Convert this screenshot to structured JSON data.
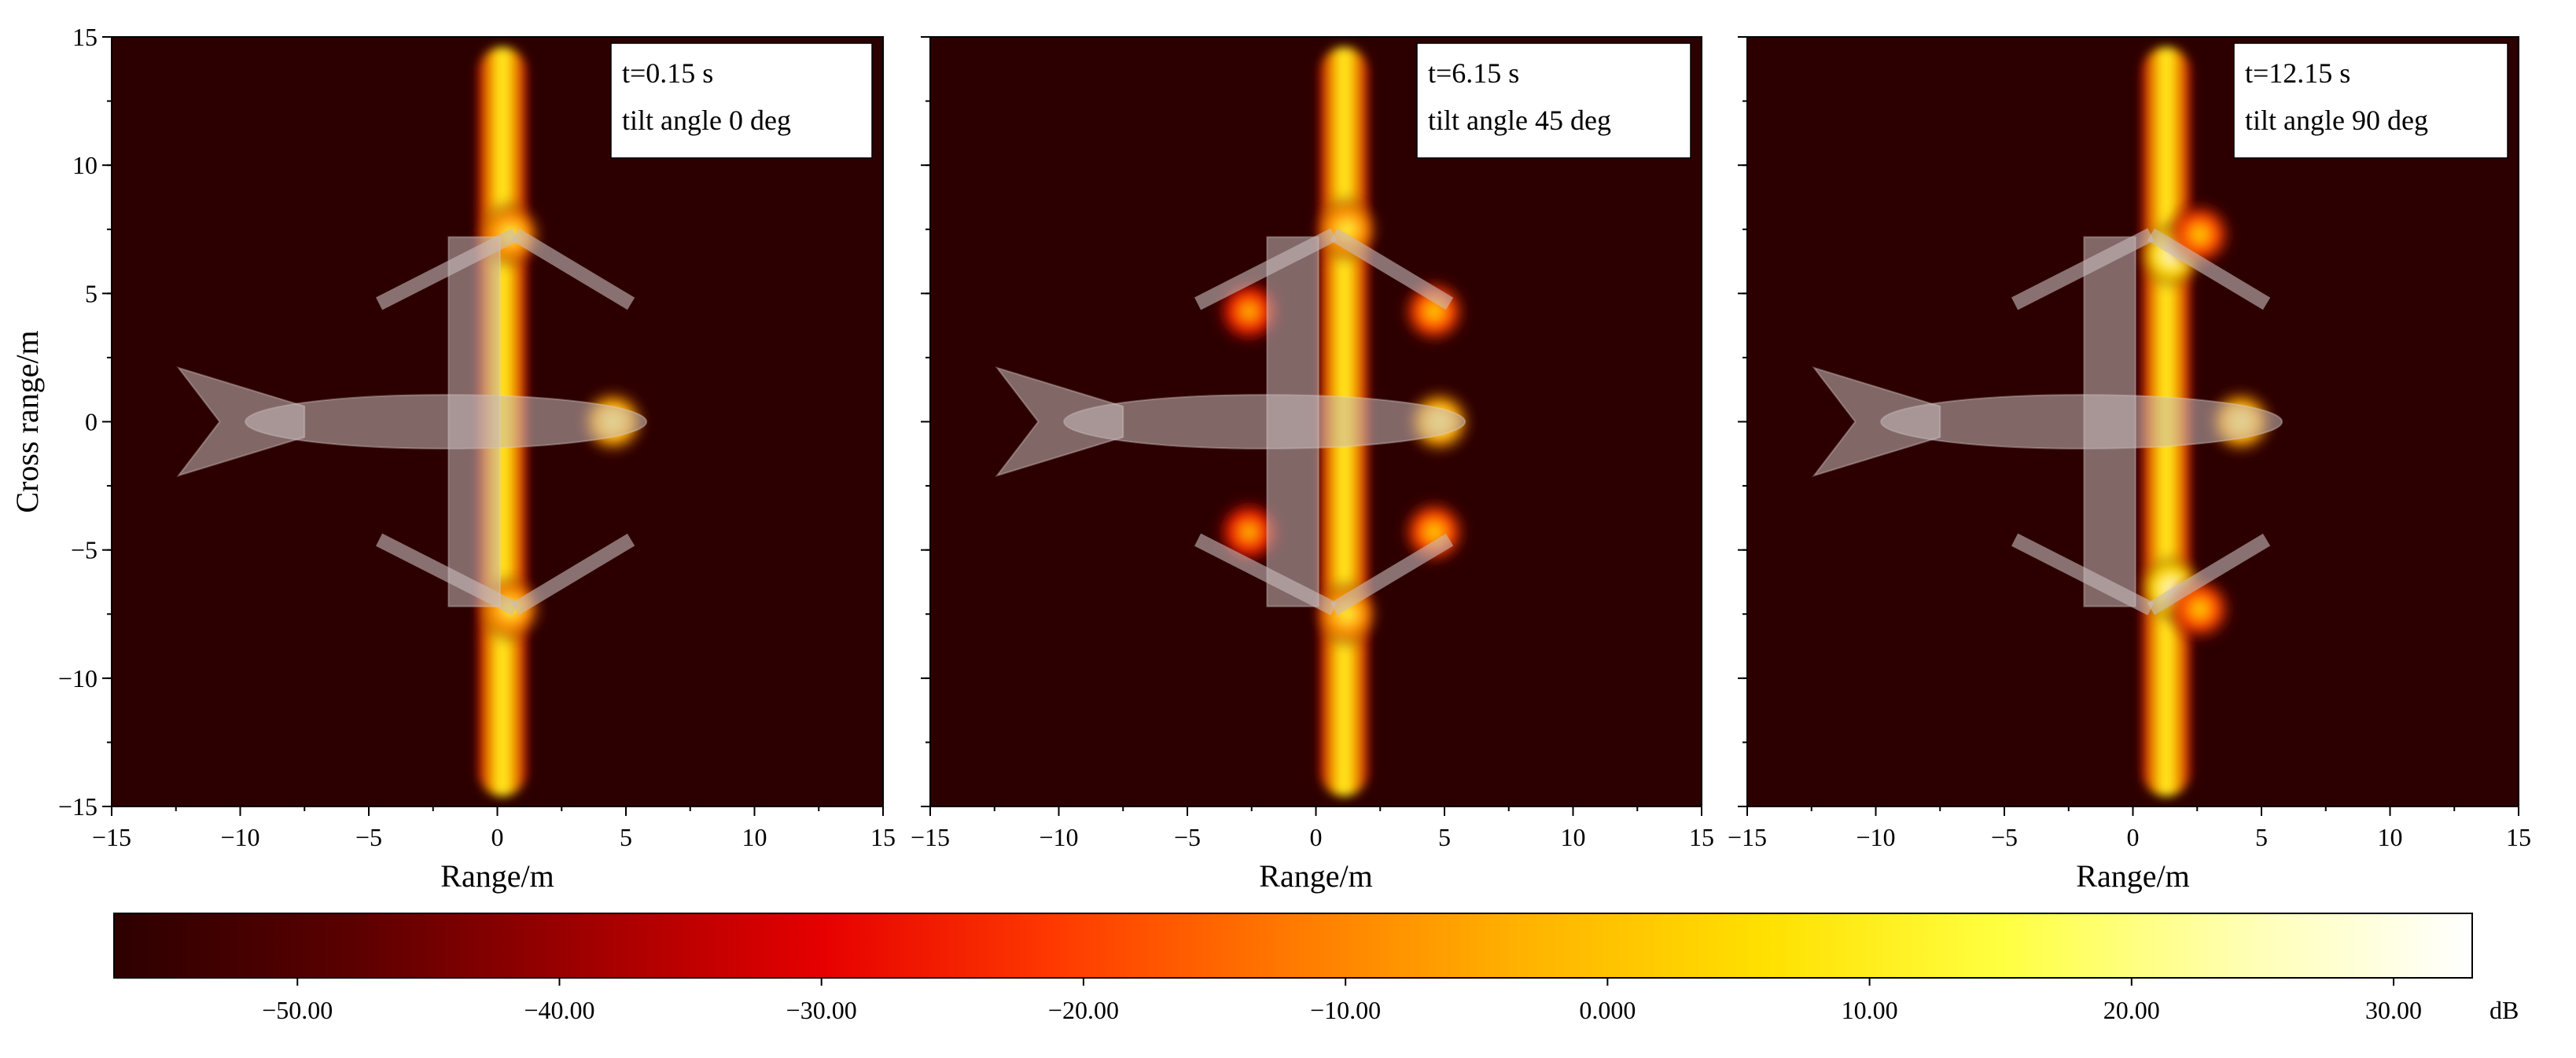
{
  "chart_data": [
    {
      "type": "heatmap",
      "xlabel": "Range/m",
      "ylabel": "Cross range/m",
      "xlim": [
        -15,
        15
      ],
      "ylim": [
        -15,
        15
      ],
      "xticks": [
        -15,
        -10,
        -5,
        0,
        5,
        10,
        15
      ],
      "yticks": [
        -15,
        -10,
        -5,
        0,
        5,
        10,
        15
      ],
      "annotation": [
        "t=0.15 s",
        "tilt angle 0 deg"
      ],
      "rotor_x": 0.2,
      "hotspots": [
        {
          "x": 4.5,
          "y": 0,
          "level": 20
        },
        {
          "x": 0.5,
          "y": 7.3,
          "level": 15
        },
        {
          "x": 0.5,
          "y": -7.3,
          "level": 15
        }
      ]
    },
    {
      "type": "heatmap",
      "xlabel": "Range/m",
      "ylabel": "",
      "xlim": [
        -15,
        15
      ],
      "ylim": [
        -15,
        15
      ],
      "xticks": [
        -15,
        -10,
        -5,
        0,
        5,
        10,
        15
      ],
      "yticks": [
        -15,
        -10,
        -5,
        0,
        5,
        10,
        15
      ],
      "annotation": [
        "t=6.15 s",
        "tilt angle 45 deg"
      ],
      "rotor_x": 1.1,
      "hotspots": [
        {
          "x": 4.8,
          "y": 0,
          "level": 20
        },
        {
          "x": 4.6,
          "y": 4.3,
          "level": 5
        },
        {
          "x": 4.6,
          "y": -4.3,
          "level": 5
        },
        {
          "x": -2.6,
          "y": 4.3,
          "level": 0
        },
        {
          "x": -2.6,
          "y": -4.3,
          "level": 0
        },
        {
          "x": 1.2,
          "y": 7.5,
          "level": 15
        },
        {
          "x": 1.2,
          "y": -7.5,
          "level": 15
        }
      ]
    },
    {
      "type": "heatmap",
      "xlabel": "Range/m",
      "ylabel": "",
      "xlim": [
        -15,
        15
      ],
      "ylim": [
        -15,
        15
      ],
      "xticks": [
        -15,
        -10,
        -5,
        0,
        5,
        10,
        15
      ],
      "yticks": [
        -15,
        -10,
        -5,
        0,
        5,
        10,
        15
      ],
      "annotation": [
        "t=12.15 s",
        "tilt angle 90 deg"
      ],
      "rotor_x": 1.3,
      "hotspots": [
        {
          "x": 4.2,
          "y": 0,
          "level": 20
        },
        {
          "x": 1.5,
          "y": 6.5,
          "level": 30
        },
        {
          "x": 1.5,
          "y": -6.5,
          "level": 30
        },
        {
          "x": 2.6,
          "y": 7.3,
          "level": 5
        },
        {
          "x": 2.6,
          "y": -7.3,
          "level": 5
        }
      ]
    }
  ],
  "colorbar": {
    "unit": "dB",
    "min": -57,
    "max": 33,
    "ticks": [
      -50,
      -40,
      -30,
      -20,
      -10,
      0,
      10,
      20,
      30
    ],
    "tick_labels": [
      "−50.00",
      "−40.00",
      "−30.00",
      "−20.00",
      "−10.00",
      "0.000",
      "10.00",
      "20.00",
      "30.00"
    ],
    "colormap": [
      "#2d0000",
      "#5a0000",
      "#a00000",
      "#e60000",
      "#ff3a00",
      "#ff7a00",
      "#ffb400",
      "#ffe000",
      "#ffff40",
      "#ffffb0",
      "#ffffff"
    ]
  },
  "colors": {
    "background": "#2d0000",
    "aircraft": "#c8bcbc"
  }
}
